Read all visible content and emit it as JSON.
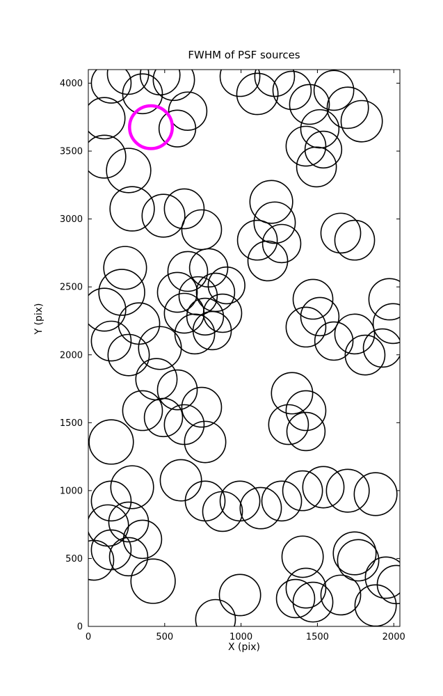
{
  "chart_data": {
    "type": "scatter",
    "title": "FWHM of PSF sources",
    "xlabel": "X (pix)",
    "ylabel": "Y (pix)",
    "xlim": [
      0,
      2040
    ],
    "ylim": [
      0,
      4100
    ],
    "xticks": [
      0,
      500,
      1000,
      1500,
      2000
    ],
    "yticks": [
      0,
      500,
      1000,
      1500,
      2000,
      2500,
      3000,
      3500,
      4000
    ],
    "marker": "open-circle",
    "colors": {
      "circle": "#000000",
      "highlight": "#ff00ff",
      "axes": "#000000"
    },
    "highlight_circle": {
      "x": 410,
      "y": 3676,
      "r": 140
    },
    "circles": [
      [
        150,
        4000,
        130
      ],
      [
        105,
        3742,
        135
      ],
      [
        355,
        3922,
        130
      ],
      [
        560,
        4025,
        135
      ],
      [
        651,
        3794,
        125
      ],
      [
        583,
        3666,
        120
      ],
      [
        470,
        4060,
        130
      ],
      [
        260,
        4070,
        135
      ],
      [
        105,
        3459,
        140
      ],
      [
        264,
        3357,
        145
      ],
      [
        993,
        4049,
        130
      ],
      [
        1107,
        3921,
        135
      ],
      [
        1220,
        4049,
        130
      ],
      [
        1334,
        3947,
        125
      ],
      [
        1448,
        3844,
        130
      ],
      [
        1516,
        3664,
        125
      ],
      [
        1608,
        3947,
        130
      ],
      [
        1699,
        3819,
        135
      ],
      [
        1425,
        3536,
        130
      ],
      [
        1494,
        3383,
        130
      ],
      [
        1539,
        3511,
        120
      ],
      [
        1790,
        3720,
        135
      ],
      [
        287,
        3075,
        145
      ],
      [
        492,
        3024,
        140
      ],
      [
        628,
        3075,
        130
      ],
      [
        742,
        2921,
        130
      ],
      [
        241,
        2640,
        140
      ],
      [
        219,
        2460,
        150
      ],
      [
        105,
        2332,
        140
      ],
      [
        332,
        2230,
        135
      ],
      [
        150,
        2101,
        130
      ],
      [
        264,
        1998,
        135
      ],
      [
        469,
        2050,
        140
      ],
      [
        651,
        2614,
        130
      ],
      [
        788,
        2640,
        125
      ],
      [
        583,
        2460,
        130
      ],
      [
        719,
        2434,
        125
      ],
      [
        833,
        2460,
        125
      ],
      [
        628,
        2306,
        130
      ],
      [
        765,
        2281,
        120
      ],
      [
        879,
        2306,
        125
      ],
      [
        697,
        2153,
        130
      ],
      [
        811,
        2178,
        125
      ],
      [
        905,
        2511,
        120
      ],
      [
        1198,
        3126,
        140
      ],
      [
        1220,
        2973,
        135
      ],
      [
        1107,
        2844,
        130
      ],
      [
        1266,
        2819,
        125
      ],
      [
        1175,
        2691,
        130
      ],
      [
        1653,
        2896,
        130
      ],
      [
        1744,
        2844,
        130
      ],
      [
        1471,
        2409,
        130
      ],
      [
        1516,
        2281,
        125
      ],
      [
        1425,
        2204,
        130
      ],
      [
        1608,
        2101,
        125
      ],
      [
        1744,
        2153,
        130
      ],
      [
        1812,
        1998,
        130
      ],
      [
        1972,
        2409,
        135
      ],
      [
        1995,
        2230,
        130
      ],
      [
        1926,
        2050,
        125
      ],
      [
        446,
        1820,
        135
      ],
      [
        583,
        1742,
        130
      ],
      [
        355,
        1589,
        130
      ],
      [
        492,
        1538,
        125
      ],
      [
        628,
        1486,
        130
      ],
      [
        742,
        1614,
        130
      ],
      [
        765,
        1358,
        135
      ],
      [
        150,
        1358,
        145
      ],
      [
        1334,
        1717,
        135
      ],
      [
        1425,
        1589,
        130
      ],
      [
        1311,
        1486,
        130
      ],
      [
        1425,
        1435,
        125
      ],
      [
        287,
        1025,
        140
      ],
      [
        150,
        923,
        130
      ],
      [
        606,
        1076,
        135
      ],
      [
        765,
        923,
        130
      ],
      [
        879,
        846,
        130
      ],
      [
        993,
        923,
        130
      ],
      [
        1129,
        871,
        135
      ],
      [
        1266,
        923,
        130
      ],
      [
        1403,
        999,
        130
      ],
      [
        1539,
        1025,
        135
      ],
      [
        1699,
        999,
        140
      ],
      [
        1881,
        974,
        140
      ],
      [
        128,
        743,
        135
      ],
      [
        264,
        769,
        130
      ],
      [
        355,
        641,
        125
      ],
      [
        150,
        564,
        130
      ],
      [
        36,
        487,
        130
      ],
      [
        264,
        513,
        125
      ],
      [
        424,
        333,
        145
      ],
      [
        993,
        231,
        135
      ],
      [
        833,
        51,
        130
      ],
      [
        1403,
        513,
        135
      ],
      [
        1744,
        538,
        140
      ],
      [
        1767,
        487,
        135
      ],
      [
        1949,
        359,
        135
      ],
      [
        1425,
        282,
        130
      ],
      [
        1357,
        205,
        125
      ],
      [
        1471,
        179,
        130
      ],
      [
        1653,
        231,
        130
      ],
      [
        1881,
        154,
        135
      ],
      [
        2017,
        308,
        125
      ]
    ]
  }
}
